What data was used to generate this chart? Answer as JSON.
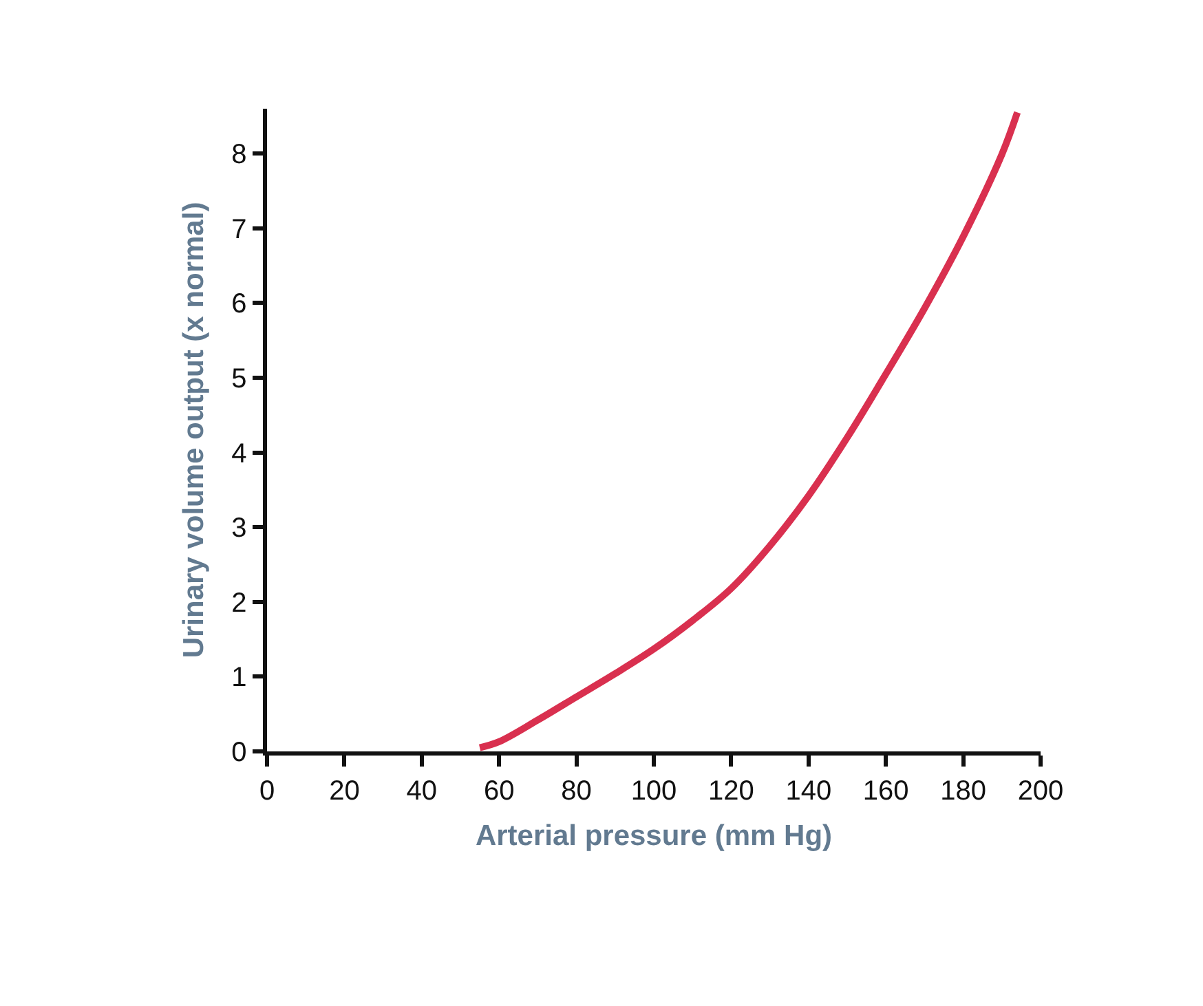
{
  "chart_data": {
    "type": "line",
    "xlabel": "Arterial pressure (mm Hg)",
    "ylabel": "Urinary volume output (x normal)",
    "x": [
      55,
      60,
      70,
      80,
      90,
      100,
      110,
      120,
      130,
      140,
      150,
      160,
      170,
      180,
      190,
      194
    ],
    "series": [
      {
        "color": "#d9304f",
        "values": [
          0.05,
          0.13,
          0.42,
          0.73,
          1.04,
          1.37,
          1.75,
          2.18,
          2.75,
          3.42,
          4.2,
          5.05,
          5.93,
          6.89,
          7.99,
          8.55
        ]
      }
    ],
    "xlim": [
      0,
      200
    ],
    "ylim": [
      0,
      8.6
    ],
    "xticks": [
      0,
      20,
      40,
      60,
      80,
      100,
      120,
      140,
      160,
      180,
      200
    ],
    "yticks": [
      0,
      1,
      2,
      3,
      4,
      5,
      6,
      7,
      8
    ],
    "marker": "none",
    "line_style": "solid"
  }
}
